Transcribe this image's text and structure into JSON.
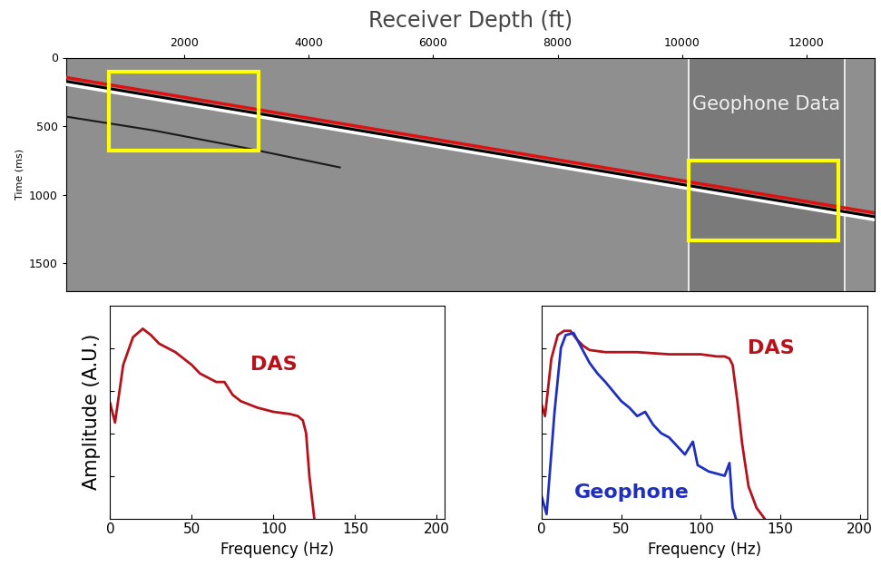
{
  "chart_data": [
    {
      "type": "section",
      "xlabel": "Receiver Depth (ft)",
      "ylabel": "Time (ms)",
      "xlim": [
        100,
        13100
      ],
      "xticks": [
        2000,
        4000,
        6000,
        8000,
        10000,
        12000
      ],
      "ylim": [
        1700,
        0
      ],
      "yticks": [
        0,
        500,
        1000,
        1500
      ],
      "series": [
        {
          "x": [
            100,
            13100
          ],
          "values": [
            175,
            1162
          ],
          "color": "#000000"
        },
        {
          "x": [
            100,
            13100
          ],
          "values": [
            195,
            1182
          ],
          "color": "#ffffff"
        },
        {
          "x": [
            100,
            1500,
            3000,
            4500
          ],
          "values": [
            430,
            530,
            660,
            800
          ],
          "color": "#1a1a1a"
        },
        {
          "x": [
            100,
            13100
          ],
          "values": [
            145,
            1132
          ],
          "color": "#e01010"
        }
      ],
      "panel": {
        "text": "Geophone Data",
        "depth_range": [
          10100,
          12620
        ],
        "color": "#7a7a7a"
      },
      "boxes": [
        {
          "depth_range": [
            790,
            3190
          ],
          "time_range": [
            100,
            680
          ],
          "color": "#ffff00"
        },
        {
          "depth_range": [
            10110,
            12520
          ],
          "time_range": [
            750,
            1330
          ],
          "color": "#ffff00"
        }
      ]
    },
    {
      "type": "line",
      "xlabel": "Frequency (Hz)",
      "ylabel": "Amplitude (A.U.)",
      "xlim": [
        0,
        205
      ],
      "xticks": [
        0,
        50,
        100,
        150,
        200
      ],
      "ylim": [
        0,
        1
      ],
      "yticks": [
        0.2,
        0.4,
        0.6,
        0.8
      ],
      "tick_labels": "x",
      "series": [
        {
          "name": "DAS",
          "color": "#b5121b",
          "x": [
            0,
            3,
            8,
            14,
            20,
            25,
            30,
            35,
            40,
            50,
            55,
            60,
            65,
            70,
            75,
            80,
            90,
            100,
            110,
            115,
            118,
            120,
            122,
            125
          ],
          "values": [
            0.54,
            0.45,
            0.72,
            0.85,
            0.89,
            0.86,
            0.82,
            0.8,
            0.78,
            0.72,
            0.68,
            0.66,
            0.64,
            0.64,
            0.58,
            0.55,
            0.52,
            0.5,
            0.49,
            0.48,
            0.46,
            0.4,
            0.2,
            0.0
          ]
        }
      ]
    },
    {
      "type": "line",
      "xlabel": "Frequency (Hz)",
      "xlim": [
        0,
        205
      ],
      "xticks": [
        0,
        50,
        100,
        150,
        200
      ],
      "ylim": [
        0,
        1
      ],
      "yticks": [
        0.2,
        0.4,
        0.6,
        0.8
      ],
      "tick_labels": "x",
      "series": [
        {
          "name": "DAS",
          "color": "#b5121b",
          "x": [
            0,
            2,
            6,
            10,
            14,
            18,
            22,
            26,
            30,
            40,
            60,
            80,
            100,
            110,
            115,
            118,
            120,
            123,
            126,
            130,
            135,
            140
          ],
          "values": [
            0.53,
            0.48,
            0.75,
            0.86,
            0.88,
            0.88,
            0.84,
            0.81,
            0.79,
            0.78,
            0.78,
            0.77,
            0.77,
            0.76,
            0.76,
            0.75,
            0.72,
            0.55,
            0.35,
            0.15,
            0.05,
            0.0
          ]
        },
        {
          "name": "Geophone",
          "color": "#1f2fbf",
          "x": [
            0,
            3,
            8,
            12,
            15,
            20,
            25,
            30,
            35,
            40,
            50,
            55,
            60,
            65,
            70,
            75,
            80,
            85,
            90,
            95,
            98,
            105,
            110,
            115,
            118,
            120,
            122
          ],
          "values": [
            0.1,
            0.02,
            0.5,
            0.8,
            0.86,
            0.87,
            0.8,
            0.73,
            0.68,
            0.64,
            0.55,
            0.52,
            0.48,
            0.5,
            0.44,
            0.4,
            0.38,
            0.34,
            0.3,
            0.36,
            0.25,
            0.22,
            0.21,
            0.2,
            0.26,
            0.05,
            0.0
          ]
        }
      ]
    }
  ]
}
